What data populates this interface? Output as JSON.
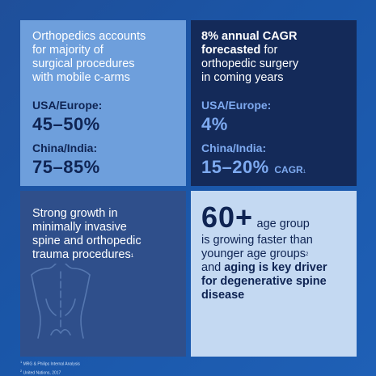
{
  "tile_top_left": {
    "line1": "Orthopedics accounts",
    "line2": "for majority of",
    "line3": "surgical procedures",
    "line4": "with mobile c-arms",
    "usa_label": "USA/Europe:",
    "usa_value": "45–50%",
    "china_label": "China/India:",
    "china_value": "75–85%"
  },
  "tile_top_right": {
    "bold1": "8% annual CAGR",
    "bold2": "forecasted",
    "normal2": " for",
    "line3": "orthopedic surgery",
    "line4": "in coming years",
    "usa_label": "USA/Europe:",
    "usa_value": "4%",
    "china_label": "China/India:",
    "china_value": "15–20%",
    "china_suffix": "CAGR",
    "china_ref": "1"
  },
  "tile_bottom_left": {
    "line1": "Strong growth in",
    "line2": "minimally invasive",
    "line3": "spine and orthopedic",
    "line4": "trauma procedures",
    "ref": "1",
    "icon": "spine-back-icon"
  },
  "tile_bottom_right": {
    "big": "60+",
    "inline": "age group",
    "line2": "is growing faster than",
    "line3": "younger age groups",
    "ref": "2",
    "line4_normal": "and ",
    "line4_bold": "aging is key driver",
    "line5": "for degenerative spine",
    "line6": "disease"
  },
  "footnotes": {
    "note1_num": "1",
    "note1_text": " MRG & Philips Internal Analysis",
    "note2_num": "2",
    "note2_text": " United Nations, 2017"
  },
  "colors": {
    "background": "#1a56a8",
    "tile_light_blue": "#6e9fdc",
    "tile_navy": "#142a59",
    "tile_mid_blue": "#2f4f8b",
    "tile_pale_blue": "#c4d9f2",
    "accent_blue": "#7eaaf0"
  }
}
